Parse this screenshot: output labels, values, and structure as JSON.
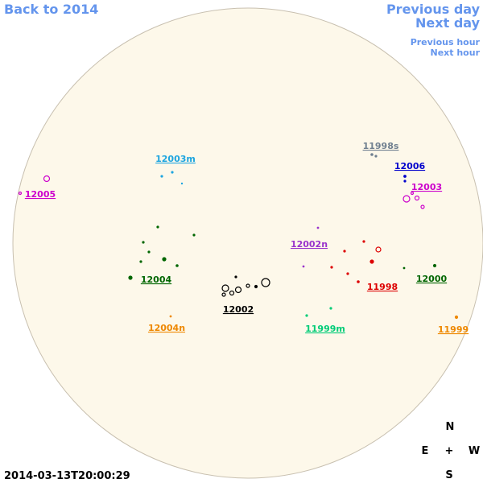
{
  "nav": {
    "back": "Back to 2014",
    "previous_day": "Previous day",
    "next_day": "Next day",
    "previous_hour": "Previous hour",
    "next_hour": "Next hour"
  },
  "regions": [
    {
      "label": "12003m",
      "color": "#1ea5e0"
    },
    {
      "label": "11998s",
      "color": "#708090"
    },
    {
      "label": "12006",
      "color": "#0000cc"
    },
    {
      "label": "12003",
      "color": "#cc00cc"
    },
    {
      "label": "12005",
      "color": "#cc00cc"
    },
    {
      "label": "12002n",
      "color": "#9933cc"
    },
    {
      "label": "12004",
      "color": "#006600"
    },
    {
      "label": "11998",
      "color": "#dd0000"
    },
    {
      "label": "12000",
      "color": "#006600"
    },
    {
      "label": "12002",
      "color": "#000000"
    },
    {
      "label": "12004n",
      "color": "#ee8800"
    },
    {
      "label": "11999m",
      "color": "#00cc77"
    },
    {
      "label": "11999",
      "color": "#ee8800"
    }
  ],
  "compass": {
    "n": "N",
    "e": "E",
    "center": "+",
    "w": "W",
    "s": "S"
  },
  "timestamp": "2014-03-13T20:00:29"
}
